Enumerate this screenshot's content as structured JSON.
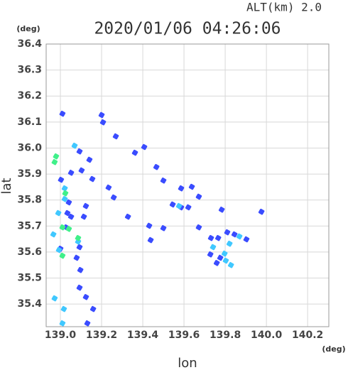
{
  "chart_data": {
    "type": "scatter",
    "title": "2020/01/06 04:26:06",
    "subtitle": "ALT(km) 2.0",
    "x_label": "lon",
    "y_label": "lat",
    "x_unit": "(deg)",
    "y_unit": "(deg)",
    "xlim": [
      138.931,
      140.303
    ],
    "ylim": [
      35.313,
      36.4
    ],
    "xticks": [
      {
        "value": 139.0,
        "label": "139.0"
      },
      139.2,
      139.4,
      139.6,
      139.8,
      {
        "value": 140.0,
        "label": "140.0"
      },
      140.2
    ],
    "yticks": [
      36.4,
      36.3,
      36.2,
      36.1,
      {
        "value": 36.0,
        "label": "36.0"
      },
      35.9,
      35.8,
      35.7,
      35.6,
      35.5,
      35.4
    ],
    "grid": true,
    "series": [
      {
        "color": "#3a4cff",
        "x": [
          139.01,
          139.2,
          139.207,
          139.269,
          139.362,
          139.407,
          139.466,
          139.093,
          139.141,
          139.103,
          139.052,
          139.003,
          139.155,
          139.234,
          139.259,
          139.5,
          139.586,
          139.638,
          139.672,
          139.545,
          139.586,
          139.621,
          139.783,
          139.976,
          139.431,
          139.438,
          139.5,
          139.672,
          139.731,
          139.766,
          139.81,
          139.845,
          139.903,
          139.728,
          139.759,
          139.776,
          139.052,
          139.028,
          139.114,
          139.093,
          139.0,
          139.079,
          139.097,
          139.093,
          139.124,
          139.159,
          139.131,
          139.041,
          139.034,
          139.124,
          139.328
        ],
        "y": [
          36.132,
          36.127,
          36.099,
          36.045,
          35.982,
          36.004,
          35.927,
          35.987,
          35.955,
          35.914,
          35.905,
          35.878,
          35.881,
          35.848,
          35.81,
          35.875,
          35.845,
          35.851,
          35.813,
          35.783,
          35.772,
          35.772,
          35.763,
          35.755,
          35.701,
          35.646,
          35.692,
          35.695,
          35.654,
          35.654,
          35.676,
          35.668,
          35.649,
          35.591,
          35.558,
          35.578,
          35.736,
          35.695,
          35.736,
          35.619,
          35.613,
          35.578,
          35.531,
          35.463,
          35.427,
          35.381,
          35.326,
          35.791,
          35.75,
          35.777,
          35.736
        ]
      },
      {
        "color": "#40c8ff",
        "x": [
          138.972,
          139.017,
          139.01,
          138.99,
          138.966,
          138.993,
          139.021,
          139.021,
          139.069,
          139.086,
          139.821,
          139.797,
          139.803,
          139.828,
          139.869,
          139.741,
          139.576
        ],
        "y": [
          35.422,
          35.381,
          35.326,
          35.75,
          35.668,
          35.608,
          35.845,
          35.804,
          36.009,
          35.64,
          35.632,
          35.594,
          35.567,
          35.55,
          35.66,
          35.619,
          35.777
        ]
      },
      {
        "color": "#40f08a",
        "x": [
          138.979,
          138.972,
          139.024,
          139.086,
          139.01,
          139.01,
          139.041
        ],
        "y": [
          35.968,
          35.946,
          35.826,
          35.654,
          35.586,
          35.695,
          35.689
        ]
      }
    ]
  }
}
